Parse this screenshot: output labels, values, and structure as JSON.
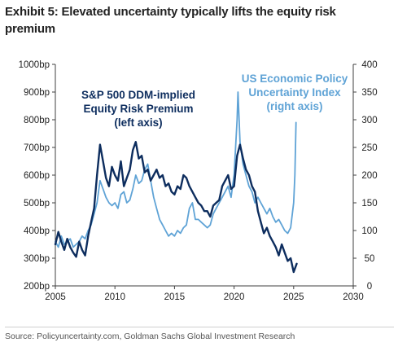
{
  "title": "Exhibit 5: Elevated uncertainty typically lifts the equity risk premium",
  "source": "Source: Policyuncertainty.com, Goldman Sachs Global Investment Research",
  "chart_data": {
    "type": "line",
    "title": "Exhibit 5: Elevated uncertainty typically lifts the equity risk premium",
    "x_ticks": [
      "2005",
      "2010",
      "2015",
      "2020",
      "2025",
      "2030"
    ],
    "xlim": [
      2005,
      2030
    ],
    "left_axis": {
      "ticks": [
        "200bp",
        "300bp",
        "400bp",
        "500bp",
        "600bp",
        "700bp",
        "800bp",
        "900bp",
        "1000bp"
      ],
      "ylim": [
        200,
        1000
      ]
    },
    "right_axis": {
      "ticks": [
        "0",
        "50",
        "100",
        "150",
        "200",
        "250",
        "300",
        "350",
        "400"
      ],
      "ylim": [
        0,
        400
      ]
    },
    "annotations": {
      "erp": [
        "S&P 500 DDM-implied",
        "Equity Risk Premium",
        "(left axis)"
      ],
      "epu": [
        "US Economic Policy",
        "Uncertainty Index",
        "(right axis)"
      ]
    },
    "colors": {
      "erp": "#0d2d5e",
      "epu": "#5fa3d6",
      "axis": "#404040",
      "text": "#222222"
    },
    "series": [
      {
        "key": "erp",
        "axis": "left",
        "x": [
          2005.0,
          2005.25,
          2005.5,
          2005.75,
          2006.0,
          2006.25,
          2006.5,
          2006.75,
          2007.0,
          2007.25,
          2007.5,
          2007.75,
          2008.0,
          2008.25,
          2008.5,
          2008.75,
          2009.0,
          2009.25,
          2009.5,
          2009.75,
          2010.0,
          2010.25,
          2010.5,
          2010.75,
          2011.0,
          2011.25,
          2011.5,
          2011.75,
          2012.0,
          2012.25,
          2012.5,
          2012.75,
          2013.0,
          2013.25,
          2013.5,
          2013.75,
          2014.0,
          2014.25,
          2014.5,
          2014.75,
          2015.0,
          2015.25,
          2015.5,
          2015.75,
          2016.0,
          2016.25,
          2016.5,
          2016.75,
          2017.0,
          2017.25,
          2017.5,
          2017.75,
          2018.0,
          2018.25,
          2018.5,
          2018.75,
          2019.0,
          2019.25,
          2019.5,
          2019.75,
          2020.0,
          2020.25,
          2020.5,
          2020.75,
          2021.0,
          2021.25,
          2021.5,
          2021.75,
          2022.0,
          2022.25,
          2022.5,
          2022.75,
          2023.0,
          2023.25,
          2023.5,
          2023.75,
          2024.0,
          2024.25,
          2024.5,
          2024.75,
          2025.0,
          2025.25
        ],
        "values": [
          350,
          395,
          360,
          330,
          370,
          340,
          320,
          305,
          360,
          330,
          310,
          380,
          430,
          480,
          600,
          710,
          650,
          590,
          560,
          630,
          600,
          580,
          650,
          560,
          590,
          620,
          690,
          720,
          660,
          670,
          610,
          620,
          580,
          600,
          620,
          590,
          600,
          560,
          570,
          540,
          530,
          560,
          550,
          600,
          590,
          560,
          540,
          520,
          500,
          490,
          470,
          470,
          450,
          490,
          500,
          510,
          560,
          580,
          600,
          550,
          560,
          670,
          710,
          660,
          620,
          600,
          560,
          540,
          470,
          430,
          390,
          410,
          380,
          360,
          340,
          310,
          350,
          320,
          290,
          300,
          250,
          280
        ]
      },
      {
        "key": "epu",
        "axis": "right",
        "x": [
          2005.0,
          2005.25,
          2005.5,
          2005.75,
          2006.0,
          2006.25,
          2006.5,
          2006.75,
          2007.0,
          2007.25,
          2007.5,
          2007.75,
          2008.0,
          2008.25,
          2008.5,
          2008.75,
          2009.0,
          2009.25,
          2009.5,
          2009.75,
          2010.0,
          2010.25,
          2010.5,
          2010.75,
          2011.0,
          2011.25,
          2011.5,
          2011.75,
          2012.0,
          2012.25,
          2012.5,
          2012.75,
          2013.0,
          2013.25,
          2013.5,
          2013.75,
          2014.0,
          2014.25,
          2014.5,
          2014.75,
          2015.0,
          2015.25,
          2015.5,
          2015.75,
          2016.0,
          2016.25,
          2016.5,
          2016.75,
          2017.0,
          2017.25,
          2017.5,
          2017.75,
          2018.0,
          2018.25,
          2018.5,
          2018.75,
          2019.0,
          2019.25,
          2019.5,
          2019.75,
          2020.0,
          2020.25,
          2020.33,
          2020.5,
          2020.75,
          2021.0,
          2021.25,
          2021.5,
          2021.75,
          2022.0,
          2022.25,
          2022.5,
          2022.75,
          2023.0,
          2023.25,
          2023.5,
          2023.75,
          2024.0,
          2024.25,
          2024.5,
          2024.75,
          2025.0,
          2025.1,
          2025.2
        ],
        "values": [
          80,
          70,
          90,
          75,
          80,
          85,
          70,
          75,
          80,
          90,
          85,
          100,
          110,
          130,
          150,
          190,
          175,
          160,
          150,
          145,
          150,
          140,
          165,
          170,
          150,
          155,
          175,
          200,
          185,
          190,
          210,
          220,
          190,
          160,
          140,
          120,
          110,
          100,
          90,
          95,
          90,
          100,
          95,
          105,
          110,
          140,
          150,
          120,
          120,
          115,
          110,
          105,
          110,
          130,
          140,
          150,
          160,
          170,
          180,
          160,
          200,
          300,
          350,
          260,
          220,
          200,
          180,
          170,
          150,
          160,
          150,
          140,
          130,
          140,
          125,
          115,
          120,
          110,
          100,
          95,
          105,
          150,
          200,
          295
        ]
      }
    ]
  }
}
